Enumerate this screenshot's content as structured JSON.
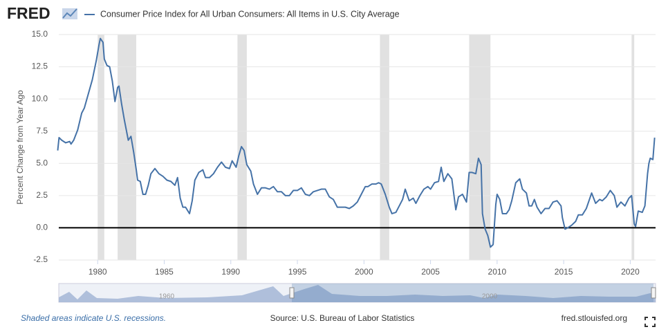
{
  "brand": "FRED",
  "chart_data": {
    "type": "line",
    "title": "Consumer Price Index for All Urban Consumers: All Items in U.S. City Average",
    "y_label": "Percent Change from Year Ago",
    "x": [
      1977.0,
      1977.1,
      1977.3,
      1977.6,
      1977.9,
      1978.0,
      1978.2,
      1978.5,
      1978.8,
      1979.0,
      1979.3,
      1979.6,
      1979.9,
      1980.1,
      1980.2,
      1980.4,
      1980.5,
      1980.7,
      1980.9,
      1981.1,
      1981.3,
      1981.5,
      1981.6,
      1981.8,
      1982.0,
      1982.3,
      1982.5,
      1982.7,
      1982.9,
      1983.0,
      1983.2,
      1983.4,
      1983.6,
      1983.8,
      1984.0,
      1984.3,
      1984.6,
      1984.9,
      1985.2,
      1985.5,
      1985.8,
      1986.0,
      1986.2,
      1986.4,
      1986.6,
      1986.9,
      1987.1,
      1987.3,
      1987.6,
      1987.9,
      1988.1,
      1988.4,
      1988.7,
      1989.0,
      1989.3,
      1989.6,
      1989.9,
      1990.1,
      1990.4,
      1990.6,
      1990.8,
      1991.0,
      1991.2,
      1991.5,
      1991.7,
      1992.0,
      1992.3,
      1992.6,
      1992.9,
      1993.2,
      1993.5,
      1993.8,
      1994.1,
      1994.4,
      1994.7,
      1995.0,
      1995.3,
      1995.6,
      1995.9,
      1996.2,
      1996.5,
      1996.8,
      1997.1,
      1997.4,
      1997.7,
      1998.0,
      1998.3,
      1998.6,
      1998.9,
      1999.2,
      1999.5,
      1999.8,
      2000.1,
      2000.3,
      2000.6,
      2000.9,
      2001.1,
      2001.3,
      2001.6,
      2001.9,
      2002.1,
      2002.4,
      2002.7,
      2002.9,
      2003.1,
      2003.4,
      2003.7,
      2003.9,
      2004.2,
      2004.5,
      2004.8,
      2005.0,
      2005.3,
      2005.6,
      2005.8,
      2006.0,
      2006.3,
      2006.6,
      2006.9,
      2007.1,
      2007.4,
      2007.7,
      2007.9,
      2008.1,
      2008.4,
      2008.6,
      2008.8,
      2008.9,
      2009.1,
      2009.3,
      2009.5,
      2009.7,
      2009.9,
      2010.0,
      2010.2,
      2010.4,
      2010.7,
      2010.9,
      2011.1,
      2011.4,
      2011.7,
      2011.9,
      2012.2,
      2012.4,
      2012.6,
      2012.8,
      2013.0,
      2013.3,
      2013.6,
      2013.9,
      2014.2,
      2014.5,
      2014.8,
      2014.9,
      2015.1,
      2015.3,
      2015.6,
      2015.9,
      2016.1,
      2016.4,
      2016.7,
      2016.9,
      2017.1,
      2017.4,
      2017.7,
      2017.9,
      2018.2,
      2018.5,
      2018.8,
      2019.0,
      2019.3,
      2019.6,
      2019.9,
      2020.1,
      2020.3,
      2020.4,
      2020.6,
      2020.9,
      2021.1,
      2021.3,
      2021.4,
      2021.5,
      2021.7,
      2021.83
    ],
    "series": [
      {
        "name": "Consumer Price Index for All Urban Consumers: All Items in U.S. City Average",
        "color": "#4572a7",
        "values": [
          6.0,
          7.0,
          6.8,
          6.6,
          6.7,
          6.5,
          6.8,
          7.6,
          8.9,
          9.3,
          10.4,
          11.5,
          13.0,
          14.2,
          14.7,
          14.4,
          13.1,
          12.6,
          12.5,
          11.4,
          9.8,
          10.9,
          11.0,
          9.6,
          8.4,
          6.8,
          7.1,
          5.9,
          4.5,
          3.7,
          3.6,
          2.6,
          2.6,
          3.3,
          4.2,
          4.6,
          4.2,
          4.0,
          3.7,
          3.6,
          3.3,
          3.9,
          2.3,
          1.6,
          1.6,
          1.1,
          2.1,
          3.7,
          4.3,
          4.5,
          3.9,
          3.9,
          4.2,
          4.7,
          5.1,
          4.7,
          4.6,
          5.2,
          4.7,
          5.6,
          6.3,
          6.0,
          4.9,
          4.4,
          3.4,
          2.6,
          3.1,
          3.1,
          3.0,
          3.2,
          2.8,
          2.8,
          2.5,
          2.5,
          2.9,
          2.9,
          3.1,
          2.6,
          2.5,
          2.8,
          2.9,
          3.0,
          3.0,
          2.4,
          2.2,
          1.6,
          1.6,
          1.6,
          1.5,
          1.7,
          2.0,
          2.6,
          3.2,
          3.2,
          3.4,
          3.4,
          3.5,
          3.4,
          2.6,
          1.6,
          1.1,
          1.2,
          1.8,
          2.2,
          3.0,
          2.1,
          2.3,
          1.9,
          2.5,
          3.0,
          3.2,
          3.0,
          3.5,
          3.6,
          4.7,
          3.6,
          4.2,
          3.8,
          1.4,
          2.4,
          2.6,
          2.0,
          4.3,
          4.3,
          4.2,
          5.4,
          4.9,
          1.1,
          -0.1,
          -0.6,
          -1.5,
          -1.3,
          1.8,
          2.6,
          2.2,
          1.1,
          1.1,
          1.4,
          2.1,
          3.5,
          3.8,
          3.0,
          2.7,
          1.7,
          1.7,
          2.2,
          1.6,
          1.1,
          1.5,
          1.5,
          2.0,
          2.1,
          1.7,
          0.8,
          -0.1,
          0.0,
          0.2,
          0.5,
          1.0,
          1.0,
          1.5,
          2.1,
          2.7,
          1.9,
          2.2,
          2.1,
          2.4,
          2.9,
          2.5,
          1.6,
          2.0,
          1.7,
          2.3,
          2.5,
          0.3,
          0.1,
          1.3,
          1.2,
          1.7,
          4.2,
          5.0,
          5.4,
          5.3,
          7.0
        ]
      }
    ],
    "recessions": [
      [
        1980.0,
        1980.5
      ],
      [
        1981.5,
        1982.9
      ],
      [
        1990.5,
        1991.2
      ],
      [
        2001.2,
        2001.9
      ],
      [
        2007.9,
        2009.5
      ],
      [
        2020.1,
        2020.3
      ]
    ],
    "xlim": [
      1977.08,
      2021.9
    ],
    "xticks": [
      1980,
      1985,
      1990,
      1995,
      2000,
      2005,
      2010,
      2015,
      2020
    ],
    "ylim": [
      -2.5,
      15
    ],
    "yticks": [
      -2.5,
      {
        "value": 0,
        "label": "0.0"
      },
      2.5,
      {
        "value": 5,
        "label": "5.0"
      },
      7.5,
      {
        "value": 10,
        "label": "10.0"
      },
      12.5,
      {
        "value": 15,
        "label": "15.0"
      }
    ],
    "grid": true
  },
  "navigator_labels": [
    "1960",
    "2000"
  ],
  "footer": {
    "note": "Shaded areas indicate U.S. recessions.",
    "source": "Source: U.S. Bureau of Labor Statistics",
    "site": "fred.stlouisfed.org"
  }
}
